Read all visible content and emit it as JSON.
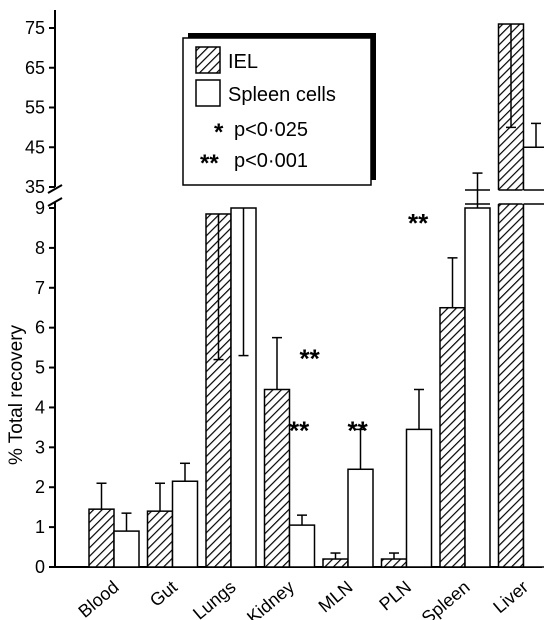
{
  "chart_data": {
    "type": "bar",
    "categories": [
      "Blood",
      "Gut",
      "Lungs",
      "Kidney",
      "MLN",
      "PLN",
      "Spleen",
      "Liver"
    ],
    "ylabel": "% Total recovery",
    "xlabel": "",
    "title": "",
    "axis_break": {
      "lower_range": [
        0,
        9
      ],
      "upper_range": [
        35,
        75
      ],
      "lower_ticks": [
        "0",
        "1",
        "2",
        "3",
        "4",
        "5",
        "6",
        "7",
        "8",
        "9"
      ],
      "upper_ticks": [
        "35",
        "45",
        "55",
        "65",
        "75"
      ]
    },
    "series": [
      {
        "name": "IEL",
        "pattern": "hatched",
        "values": [
          1.45,
          1.4,
          8.85,
          4.45,
          0.2,
          0.2,
          6.5,
          76
        ],
        "error_upper": [
          2.1,
          2.1,
          5.2,
          5.75,
          0.35,
          0.35,
          7.75,
          50
        ]
      },
      {
        "name": "Spleen cells",
        "pattern": "open",
        "values": [
          0.9,
          2.15,
          9.0,
          1.05,
          2.45,
          3.45,
          34.5,
          45
        ],
        "error_upper": [
          1.35,
          2.6,
          5.3,
          1.3,
          3.45,
          4.45,
          38.5,
          51
        ]
      }
    ],
    "significance": [
      {
        "category": "Kidney",
        "label": "**"
      },
      {
        "category": "MLN",
        "label": "**"
      },
      {
        "category": "PLN",
        "label": "**"
      },
      {
        "category": "Spleen",
        "label": "**"
      },
      {
        "category": "Liver",
        "label": "*"
      }
    ],
    "legend": {
      "placement": "top-center",
      "entries": [
        {
          "symbol": "hatched",
          "label": "IEL"
        },
        {
          "symbol": "open",
          "label": "Spleen cells"
        },
        {
          "symbol": "*",
          "label": "p<0·025"
        },
        {
          "symbol": "**",
          "label": "p<0·001"
        }
      ]
    }
  }
}
